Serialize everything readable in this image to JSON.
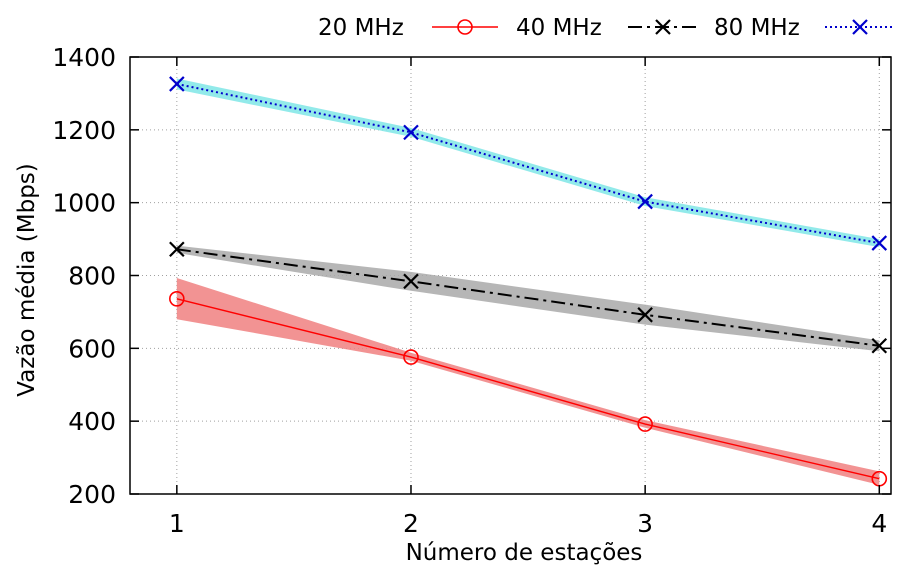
{
  "chart_data": {
    "type": "line",
    "title": "",
    "xlabel": "Número de estações",
    "ylabel": "Vazão média (Mbps)",
    "x": [
      1,
      2,
      3,
      4
    ],
    "x_ticks": [
      1,
      2,
      3,
      4
    ],
    "ylim": [
      200,
      1400
    ],
    "y_ticks": [
      200,
      400,
      600,
      800,
      1000,
      1200,
      1400
    ],
    "grid": true,
    "legend_position": "top-right, outside plot",
    "series": [
      {
        "name": "20 MHz",
        "values": [
          736,
          576,
          392,
          242
        ],
        "band_lower": [
          680,
          566,
          382,
          225
        ],
        "band_upper": [
          793,
          588,
          403,
          262
        ],
        "color": "#ff0000",
        "band_color": "#f08080",
        "marker": "circle",
        "line_style": "solid"
      },
      {
        "name": "40 MHz",
        "values": [
          872,
          784,
          692,
          607
        ],
        "band_lower": [
          862,
          758,
          665,
          592
        ],
        "band_upper": [
          882,
          810,
          720,
          622
        ],
        "color": "#000000",
        "band_color": "#a9a9a9",
        "marker": "x",
        "line_style": "dash-dot"
      },
      {
        "name": "80 MHz",
        "values": [
          1326,
          1193,
          1003,
          889
        ],
        "band_lower": [
          1311,
          1181,
          991,
          878
        ],
        "band_upper": [
          1341,
          1205,
          1015,
          900
        ],
        "color": "#0000cc",
        "band_color": "#7fe6e6",
        "marker": "x",
        "line_style": "dotted"
      }
    ]
  }
}
